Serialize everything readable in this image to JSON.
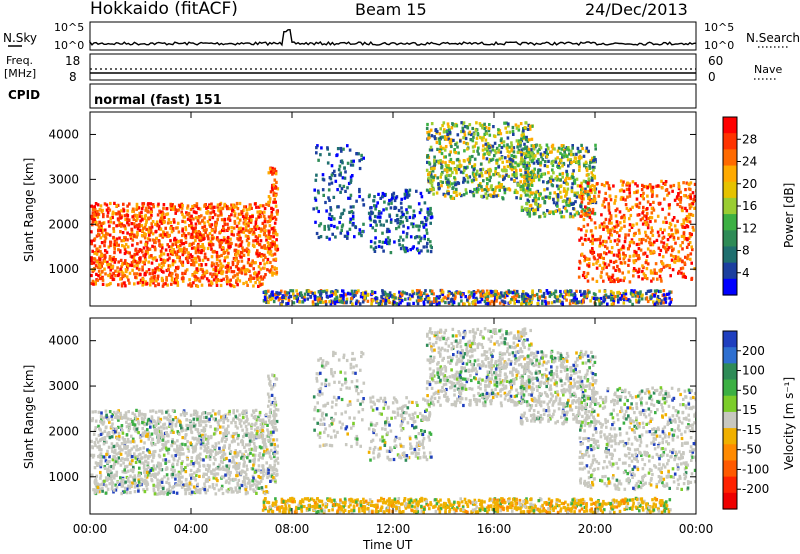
{
  "header": {
    "title": "Hokkaido (fitACF)",
    "beam": "Beam 15",
    "date": "24/Dec/2013"
  },
  "top_panels": {
    "nsky_label": "N.Sky",
    "nsky_ticks": [
      "10^5",
      "10^0"
    ],
    "nsearch_label": "N.Search",
    "nsearch_ticks": [
      "10^5",
      "10^0"
    ],
    "freq_label": "Freq.",
    "freq_unit": "[MHz]",
    "freq_ticks": [
      "18",
      "8"
    ],
    "nave_label": "Nave",
    "nave_ticks": [
      "60",
      "0"
    ],
    "cpid_label": "CPID",
    "cpid_value": "normal (fast) 151"
  },
  "chart_data": [
    {
      "type": "heatmap",
      "name": "power",
      "ylabel": "Slant Range [km]",
      "xlabel": "Time UT",
      "y_ticks": [
        "4000",
        "3000",
        "2000",
        "1000"
      ],
      "y_values": [
        4000,
        3000,
        2000,
        1000
      ],
      "ylim": [
        180,
        4500
      ],
      "x_ticks": [
        "00:00",
        "04:00",
        "08:00",
        "12:00",
        "16:00",
        "20:00",
        "00:00"
      ],
      "x_hours": [
        0,
        4,
        8,
        12,
        16,
        20,
        24
      ],
      "colorbar_label": "Power [dB]",
      "colorbar_ticks": [
        "28",
        "24",
        "20",
        "16",
        "12",
        "8",
        "4"
      ],
      "colorbar_colors": [
        "#ff0000",
        "#ff3300",
        "#ff6a00",
        "#ffaa00",
        "#e6c200",
        "#9acd32",
        "#3cb043",
        "#2e8b57",
        "#1f6f6f",
        "#1c3f9f",
        "#0000ff"
      ]
    },
    {
      "type": "heatmap",
      "name": "velocity",
      "ylabel": "Slant Range [km]",
      "xlabel": "Time UT",
      "y_ticks": [
        "4000",
        "3000",
        "2000",
        "1000"
      ],
      "y_values": [
        4000,
        3000,
        2000,
        1000
      ],
      "ylim": [
        180,
        4500
      ],
      "x_ticks": [
        "00:00",
        "04:00",
        "08:00",
        "12:00",
        "16:00",
        "20:00",
        "00:00"
      ],
      "x_hours": [
        0,
        4,
        8,
        12,
        16,
        20,
        24
      ],
      "colorbar_label": "Velocity [m s⁻¹]",
      "colorbar_ticks": [
        "200",
        "100",
        "50",
        "15",
        "-15",
        "-50",
        "-100",
        "-200"
      ],
      "colorbar_colors": [
        "#1f3fbf",
        "#2e6fd0",
        "#2e8b57",
        "#3cb043",
        "#7ccd2a",
        "#c8c8c0",
        "#f0b000",
        "#ff8a00",
        "#ff5a00",
        "#ff2200",
        "#ee0000"
      ]
    }
  ],
  "bottom_axis": {
    "xlabel": "Time UT"
  }
}
